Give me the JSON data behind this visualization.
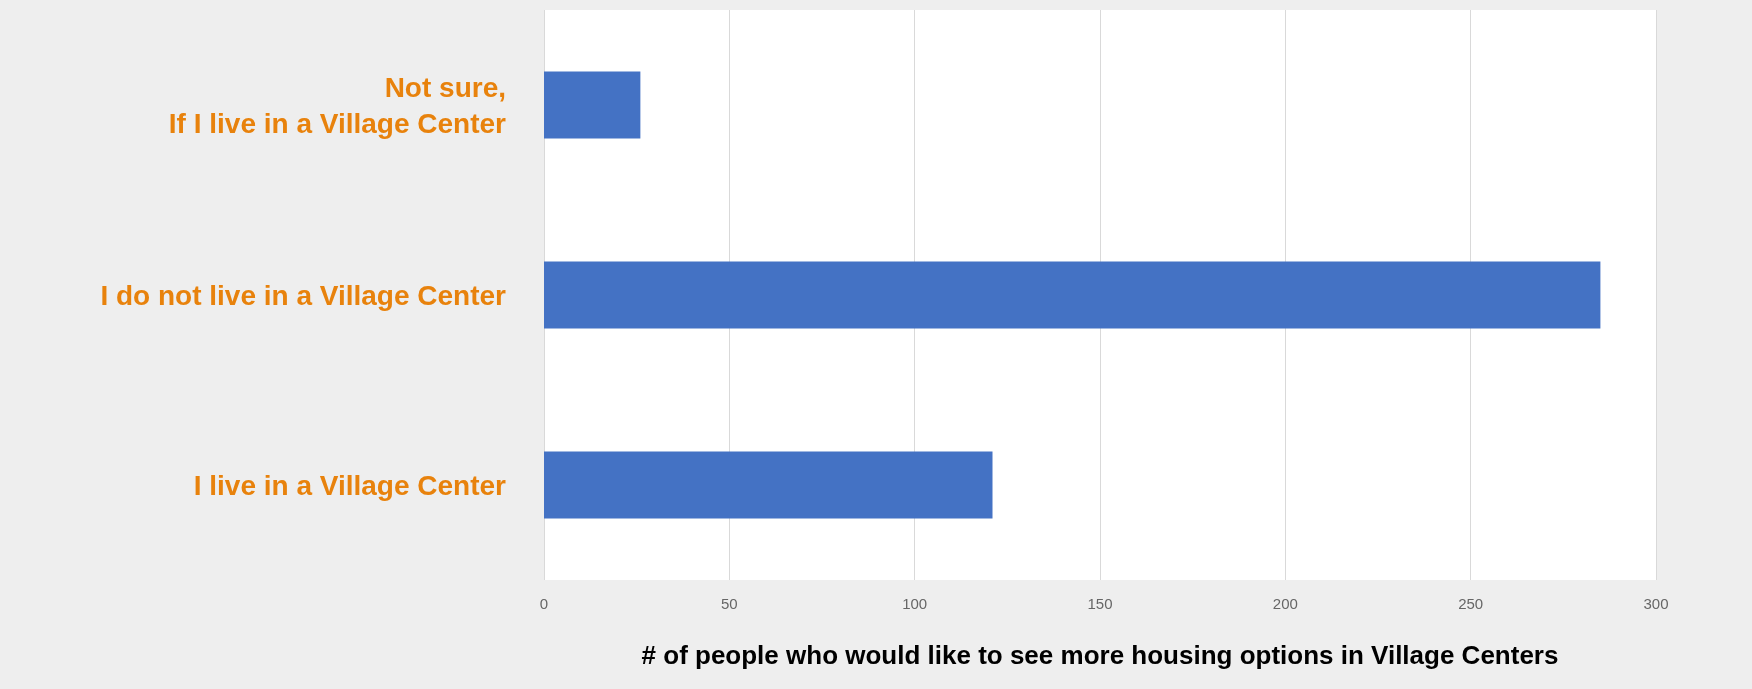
{
  "chart_data": {
    "type": "bar",
    "orientation": "horizontal",
    "categories": [
      "Not sure,\nIf I live in a Village Center",
      "I do not live in a Village Center",
      "I live in a Village Center"
    ],
    "values": [
      26,
      285,
      121
    ],
    "color": "#4472c4",
    "xlabel": "# of people who would like to see more housing options in Village Centers",
    "xlim": [
      0,
      300
    ],
    "xticks": [
      0,
      50,
      100,
      150,
      200,
      250,
      300
    ],
    "grid": "x"
  }
}
